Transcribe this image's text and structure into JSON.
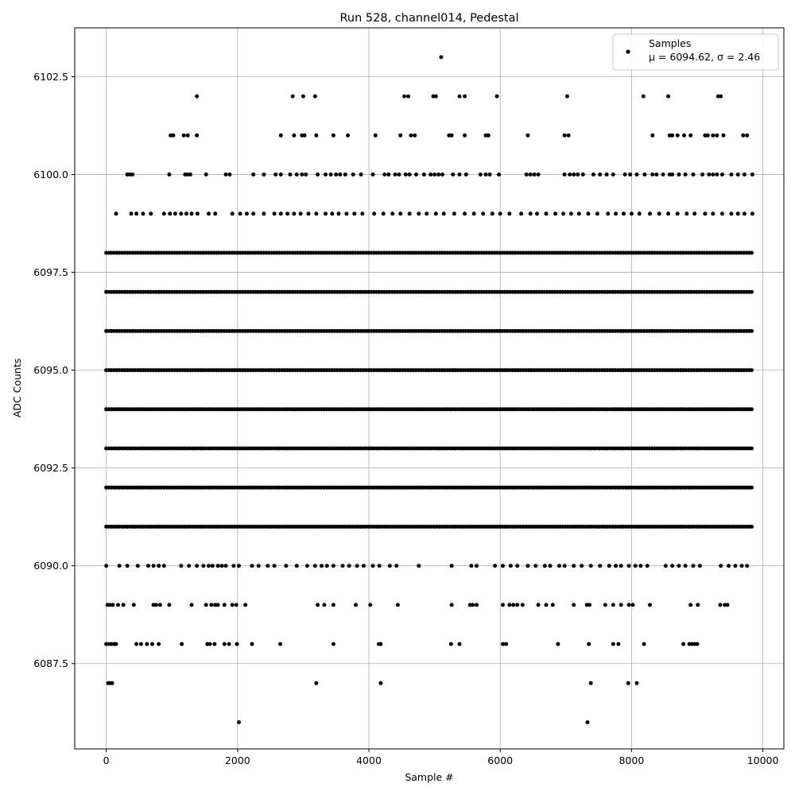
{
  "chart_data": {
    "type": "scatter",
    "title": "Run 528, channel014, Pedestal",
    "xlabel": "Sample #",
    "ylabel": "ADC Counts",
    "xlim": [
      -480,
      10320
    ],
    "ylim": [
      6085.32,
      6103.75
    ],
    "grid": true,
    "legend_position": "top-right",
    "marker_color": "#000000",
    "x_ticks": [
      0,
      2000,
      4000,
      6000,
      8000,
      10000
    ],
    "x_tick_labels": [
      "0",
      "2000",
      "4000",
      "6000",
      "8000",
      "10000"
    ],
    "y_ticks": [
      6087.5,
      6090.0,
      6092.5,
      6095.0,
      6097.5,
      6100.0,
      6102.5
    ],
    "y_tick_labels": [
      "6087.5",
      "6090.0",
      "6092.5",
      "6095.0",
      "6097.5",
      "6100.0",
      "6102.5"
    ],
    "series": [
      {
        "name": "Samples",
        "legend_stats": "μ = 6094.62, σ = 2.46",
        "x_range": [
          0,
          9840
        ],
        "levels": [
          {
            "y": 6086,
            "x": [
              2020,
              7330
            ]
          },
          {
            "y": 6087,
            "x": [
              30,
              60,
              90,
              3200,
              4180,
              7380,
              7950,
              8080
            ]
          },
          {
            "y": 6088,
            "x": [
              0,
              40,
              80,
              120,
              150,
              460,
              530,
              620,
              700,
              800,
              1150,
              1540,
              1580,
              1650,
              1800,
              1870,
              1990,
              2220,
              2650,
              3460,
              4150,
              4180,
              5250,
              5380,
              6040,
              6090,
              6880,
              7350,
              7720,
              7800,
              8190,
              8790,
              8880,
              8920,
              8960,
              9000
            ]
          },
          {
            "y": 6089,
            "x": [
              20,
              60,
              100,
              180,
              260,
              420,
              720,
              760,
              820,
              960,
              1300,
              1520,
              1600,
              1660,
              1700,
              1800,
              1920,
              1980,
              2120,
              3220,
              3320,
              3460,
              3800,
              4020,
              4440,
              5260,
              5540,
              5580,
              5640,
              6040,
              6140,
              6200,
              6260,
              6340,
              6580,
              6700,
              6800,
              7120,
              7320,
              7360,
              7600,
              7720,
              7840,
              7960,
              8020,
              8280,
              8900,
              9010,
              9350,
              9420,
              9460
            ]
          },
          {
            "y": 6090,
            "x": [
              0,
              200,
              320,
              480,
              640,
              720,
              800,
              880,
              1140,
              1260,
              1380,
              1480,
              1560,
              1620,
              1700,
              1760,
              1820,
              1940,
              2020,
              2220,
              2320,
              2460,
              2560,
              2740,
              2900,
              3060,
              3180,
              3280,
              3360,
              3460,
              3600,
              3700,
              3820,
              3920,
              4060,
              4160,
              4320,
              4420,
              4760,
              5260,
              5560,
              5640,
              5920,
              6040,
              6160,
              6260,
              6420,
              6540,
              6680,
              6760,
              6900,
              6980,
              7120,
              7240,
              7380,
              7520,
              7660,
              7760,
              7840,
              7960,
              8060,
              8140,
              8240,
              8520,
              8620,
              8720,
              8820,
              8940,
              9040,
              9360,
              9480,
              9580,
              9680,
              9760
            ]
          }
        ],
        "dense_levels": [
          6091,
          6092,
          6093,
          6094,
          6095,
          6096,
          6097,
          6098
        ],
        "sparse_upper_levels": [
          {
            "y": 6099,
            "x": [
              150,
              380,
              460,
              560,
              680,
              880,
              970,
              1050,
              1140,
              1220,
              1300,
              1390,
              1560,
              1660,
              1920,
              2040,
              2140,
              2240,
              2400,
              2560,
              2660,
              2760,
              2860,
              2960,
              3080,
              3200,
              3340,
              3440,
              3540,
              3660,
              3780,
              3900,
              4080,
              4220,
              4360,
              4480,
              4620,
              4760,
              4880,
              5020,
              5140,
              5300,
              5460,
              5600,
              5740,
              5880,
              6000,
              6140,
              6320,
              6460,
              6560,
              6700,
              6840,
              6960,
              7080,
              7200,
              7340,
              7480,
              7640,
              7760,
              7880,
              8000,
              8120,
              8280,
              8420,
              8560,
              8700,
              8840,
              8960,
              9120,
              9240,
              9380,
              9520,
              9620,
              9720,
              9840
            ]
          },
          {
            "y": 6100,
            "x": [
              320,
              360,
              400,
              960,
              1200,
              1240,
              1280,
              1520,
              1820,
              1880,
              2240,
              2400,
              2580,
              2660,
              2800,
              2900,
              2980,
              3040,
              3220,
              3340,
              3420,
              3500,
              3560,
              3640,
              3760,
              3880,
              4060,
              4240,
              4300,
              4400,
              4460,
              4560,
              4620,
              4720,
              4840,
              4940,
              5000,
              5060,
              5120,
              5280,
              5380,
              5480,
              5700,
              5780,
              5840,
              5980,
              6400,
              6460,
              6520,
              6580,
              6980,
              7060,
              7120,
              7180,
              7260,
              7420,
              7520,
              7620,
              7720,
              7900,
              7980,
              8080,
              8200,
              8320,
              8380,
              8480,
              8580,
              8620,
              8720,
              8820,
              8940,
              9080,
              9180,
              9240,
              9300,
              9380,
              9520,
              9620,
              9720,
              9840
            ]
          },
          {
            "y": 6101,
            "x": [
              980,
              1020,
              1180,
              1240,
              1380,
              2660,
              2860,
              2980,
              3020,
              3200,
              3460,
              3680,
              4100,
              4480,
              4640,
              4700,
              5220,
              5260,
              5460,
              5780,
              5820,
              6420,
              6980,
              7040,
              8320,
              8580,
              8620,
              8700,
              8800,
              8900,
              9120,
              9160,
              9240,
              9300,
              9400,
              9700,
              9760
            ]
          },
          {
            "y": 6102,
            "x": [
              1380,
              2840,
              3000,
              3180,
              4540,
              4600,
              4980,
              5020,
              5380,
              5460,
              5950,
              7020,
              8180,
              8560,
              9320,
              9360
            ]
          },
          {
            "y": 6103,
            "x": [
              5100
            ]
          }
        ]
      }
    ]
  }
}
